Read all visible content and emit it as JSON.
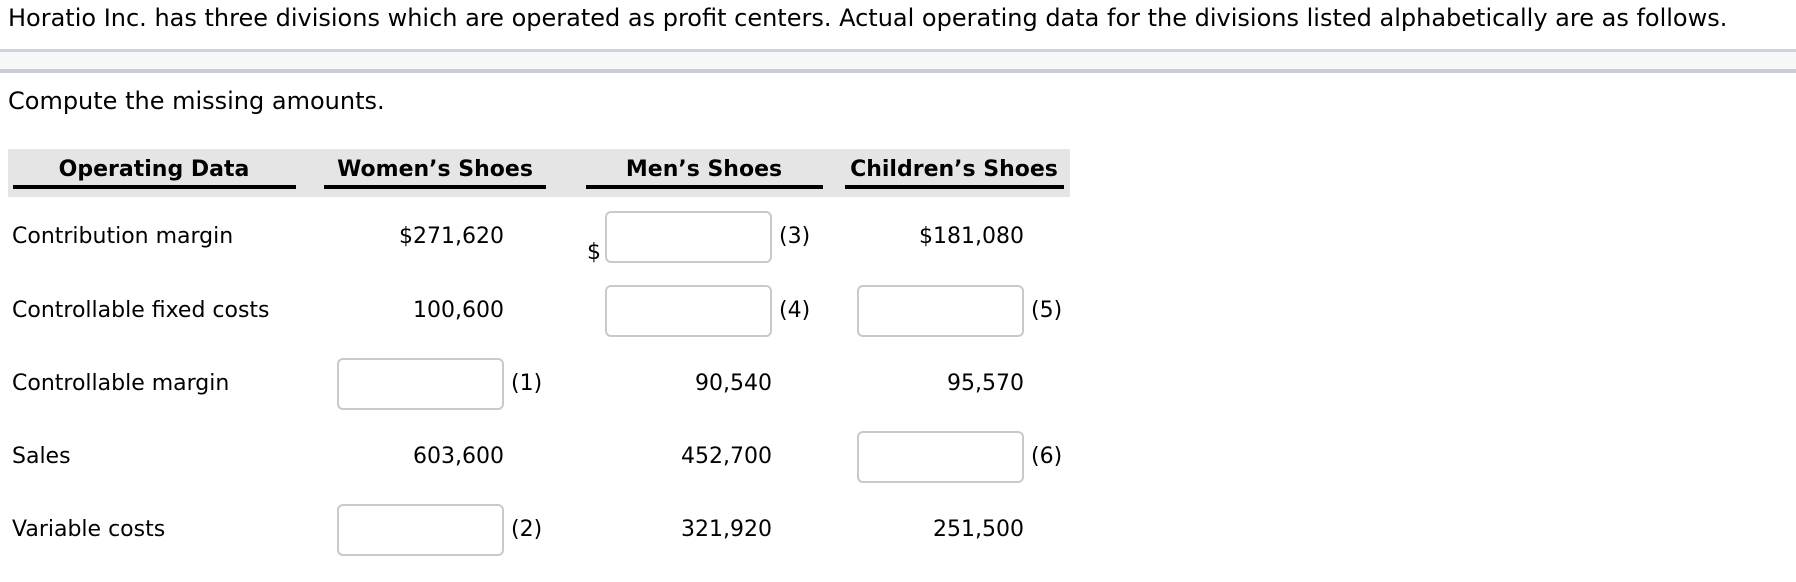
{
  "title": "Horatio Inc. has three divisions which are operated as profit centers. Actual operating data for the divisions listed alphabetically are as follows.",
  "instruction": "Compute the missing amounts.",
  "table": {
    "headers": [
      "Operating Data",
      "Women’s Shoes",
      "Men’s Shoes",
      "Children’s Shoes"
    ],
    "rows": [
      {
        "label": "Contribution margin",
        "cells": [
          {
            "value": "$271,620"
          },
          {
            "input": true,
            "prefix": "$",
            "tag": "(3)"
          },
          {
            "value": "$181,080"
          }
        ]
      },
      {
        "label": "Controllable fixed costs",
        "cells": [
          {
            "value": "100,600"
          },
          {
            "input": true,
            "tag": "(4)"
          },
          {
            "input": true,
            "tag": "(5)"
          }
        ]
      },
      {
        "label": "Controllable margin",
        "cells": [
          {
            "input": true,
            "tag": "(1)"
          },
          {
            "value": "90,540"
          },
          {
            "value": "95,570"
          }
        ]
      },
      {
        "label": "Sales",
        "cells": [
          {
            "value": "603,600"
          },
          {
            "value": "452,700"
          },
          {
            "input": true,
            "tag": "(6)"
          }
        ]
      },
      {
        "label": "Variable costs",
        "cells": [
          {
            "input": true,
            "tag": "(2)"
          },
          {
            "value": "321,920"
          },
          {
            "value": "251,500"
          }
        ]
      }
    ]
  },
  "colors": {
    "header_bg": "#e5e5e5",
    "header_rule": "#000000",
    "divider_fill": "#f6f7f9",
    "divider_border": "#c9cdd6",
    "input_border": "#c9c9c9",
    "text": "#000000"
  }
}
